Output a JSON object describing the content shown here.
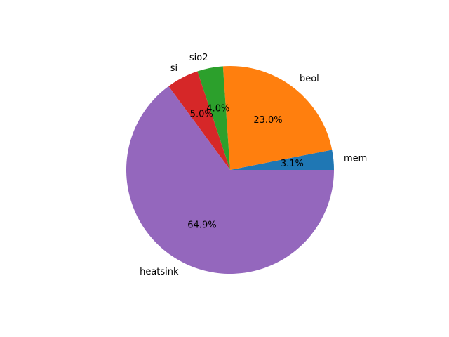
{
  "chart_data": {
    "type": "pie",
    "labels": [
      "mem",
      "beol",
      "sio2",
      "si",
      "heatsink"
    ],
    "values": [
      3.1,
      23.0,
      4.0,
      5.0,
      64.9
    ],
    "percent_labels": [
      "3.1%",
      "23.0%",
      "4.0%",
      "5.0%",
      "64.9%"
    ],
    "colors": [
      "#1f77b4",
      "#ff7f0e",
      "#2ca02c",
      "#d62728",
      "#9467bd"
    ],
    "start_angle_deg": 0,
    "direction": "counterclockwise",
    "title": ""
  }
}
